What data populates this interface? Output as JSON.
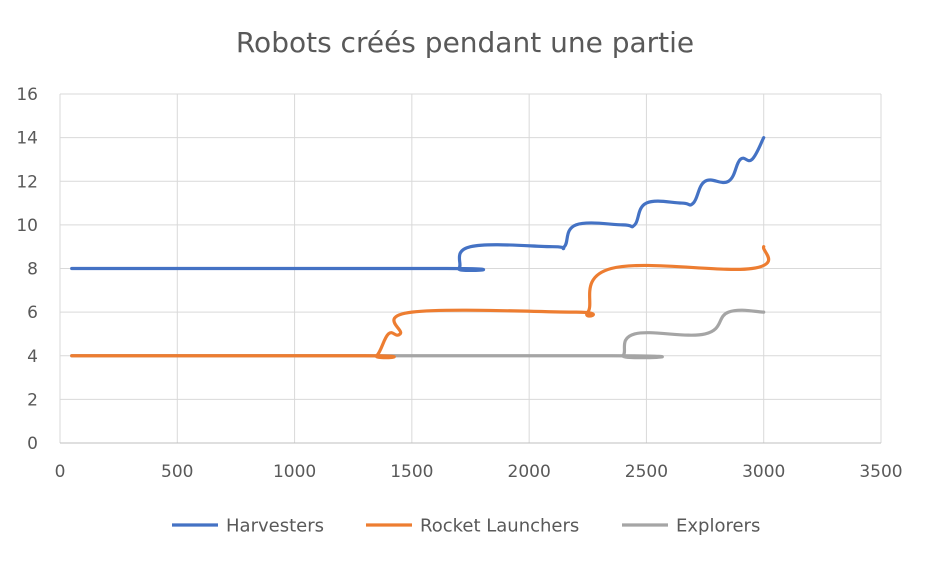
{
  "chart_data": {
    "type": "line",
    "title": "Robots créés pendant une partie",
    "xlabel": "",
    "ylabel": "",
    "xlim": [
      0,
      3500
    ],
    "ylim": [
      0,
      16
    ],
    "xticks": [
      0,
      500,
      1000,
      1500,
      2000,
      2500,
      3000,
      3500
    ],
    "yticks": [
      0,
      2,
      4,
      6,
      8,
      10,
      12,
      14,
      16
    ],
    "grid": true,
    "legend_position": "bottom",
    "series": [
      {
        "name": "Harvesters",
        "color": "#4472C4",
        "points": [
          [
            50,
            8
          ],
          [
            1650,
            8
          ],
          [
            1700,
            8
          ],
          [
            1750,
            9
          ],
          [
            2100,
            9
          ],
          [
            2150,
            9
          ],
          [
            2200,
            10
          ],
          [
            2400,
            10
          ],
          [
            2450,
            10
          ],
          [
            2500,
            11
          ],
          [
            2650,
            11
          ],
          [
            2700,
            11
          ],
          [
            2750,
            12
          ],
          [
            2850,
            12
          ],
          [
            2900,
            13
          ],
          [
            2950,
            13
          ],
          [
            3000,
            14
          ]
        ]
      },
      {
        "name": "Rocket Launchers",
        "color": "#ED7D31",
        "points": [
          [
            50,
            4
          ],
          [
            1300,
            4
          ],
          [
            1350,
            4
          ],
          [
            1400,
            5
          ],
          [
            1450,
            5
          ],
          [
            1500,
            6
          ],
          [
            2200,
            6
          ],
          [
            2250,
            6
          ],
          [
            2350,
            8
          ],
          [
            2950,
            8
          ],
          [
            3000,
            9
          ]
        ]
      },
      {
        "name": "Explorers",
        "color": "#A5A5A5",
        "points": [
          [
            50,
            4
          ],
          [
            2350,
            4
          ],
          [
            2400,
            4
          ],
          [
            2450,
            5
          ],
          [
            2750,
            5
          ],
          [
            2850,
            6
          ],
          [
            3000,
            6
          ]
        ]
      }
    ]
  }
}
